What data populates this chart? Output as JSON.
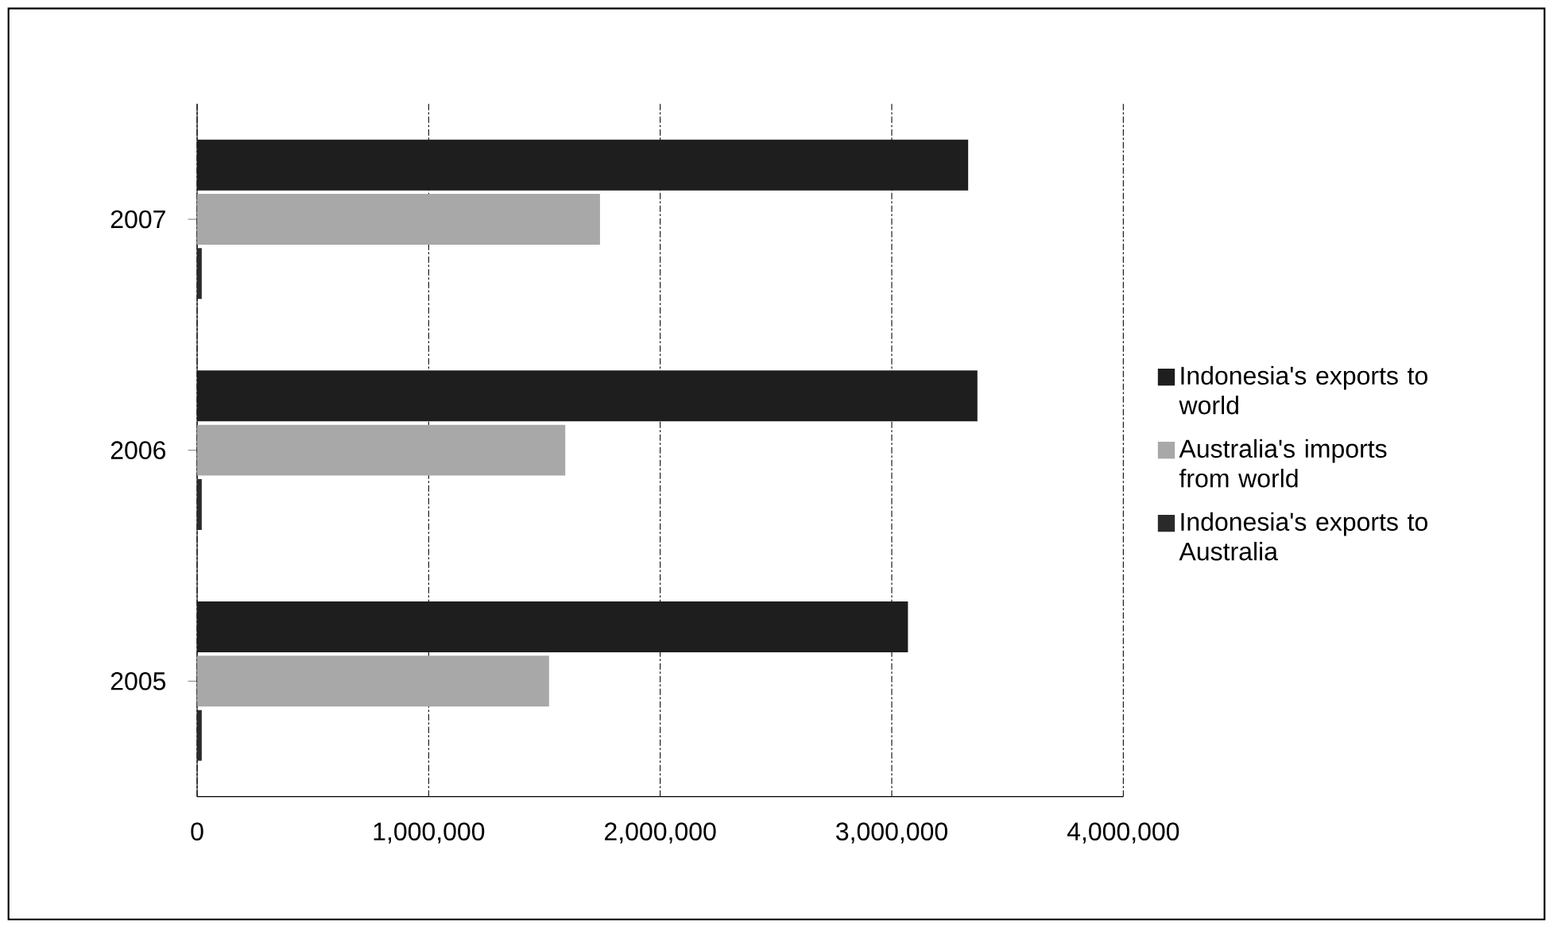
{
  "chart_data": {
    "type": "bar",
    "orientation": "horizontal",
    "categories": [
      "2007",
      "2006",
      "2005"
    ],
    "series": [
      {
        "name": "Indonesia's exports to world",
        "color": "#1e1e1e",
        "values": [
          3330000,
          3370000,
          3070000
        ]
      },
      {
        "name": "Australia's imports from world",
        "color": "#a8a8a8",
        "values": [
          1740000,
          1590000,
          1520000
        ]
      },
      {
        "name": "Indonesia's exports to Australia",
        "color": "#2a2a2a",
        "values": [
          20000,
          20000,
          20000
        ]
      }
    ],
    "xlim": [
      0,
      4000000
    ],
    "xticks": [
      {
        "value": 0,
        "label": "0"
      },
      {
        "value": 1000000,
        "label": "1,000,000"
      },
      {
        "value": 2000000,
        "label": "2,000,000"
      },
      {
        "value": 3000000,
        "label": "3,000,000"
      },
      {
        "value": 4000000,
        "label": "4,000,000"
      }
    ],
    "grid": "x",
    "legend": "right"
  }
}
